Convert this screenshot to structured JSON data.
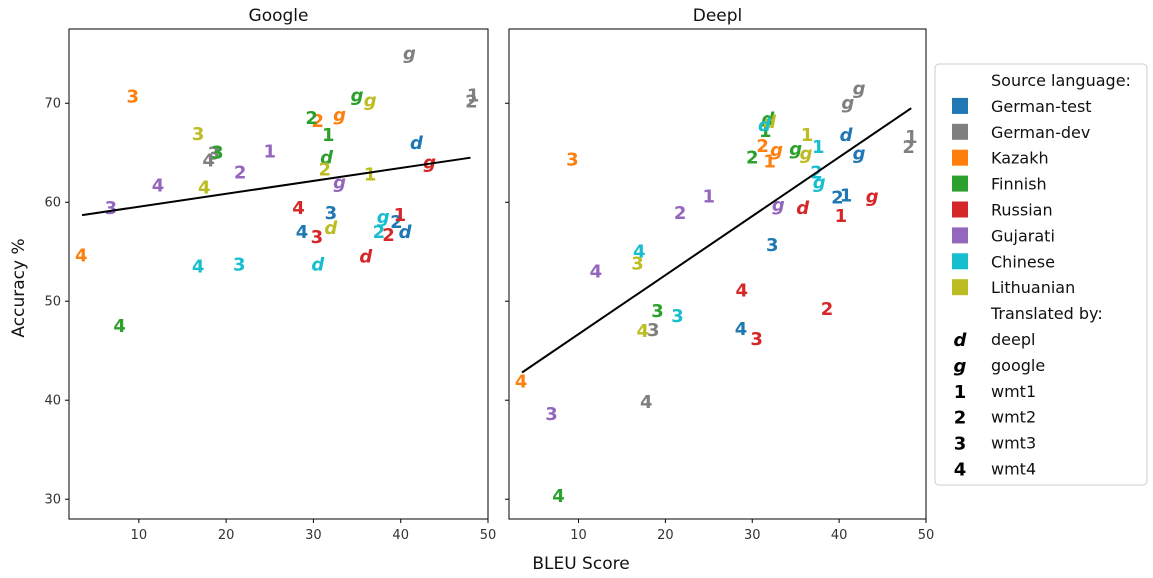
{
  "chart_data": [
    {
      "type": "scatter",
      "title": "Google",
      "xlim": [
        2,
        50
      ],
      "ylim": [
        28,
        77.5
      ],
      "xticks": [
        10,
        20,
        30,
        40,
        50
      ],
      "yticks": [
        30,
        40,
        50,
        60,
        70
      ],
      "xlabel": "BLEU Score",
      "ylabel": "Accuracy %",
      "trendline": [
        [
          3.5,
          58.7
        ],
        [
          48,
          64.5
        ]
      ],
      "points": [
        {
          "x": 41,
          "y": 75,
          "lang": "German-dev",
          "label": "g"
        },
        {
          "x": 48.3,
          "y": 70.8,
          "lang": "German-dev",
          "label": "1"
        },
        {
          "x": 48.1,
          "y": 70.2,
          "lang": "German-dev",
          "label": "2"
        },
        {
          "x": 18.6,
          "y": 64.9,
          "lang": "German-dev",
          "label": "3"
        },
        {
          "x": 18,
          "y": 64.2,
          "lang": "German-dev",
          "label": "4"
        },
        {
          "x": 9.3,
          "y": 70.7,
          "lang": "Kazakh",
          "label": "3"
        },
        {
          "x": 30.5,
          "y": 68.2,
          "lang": "Kazakh",
          "label": "2"
        },
        {
          "x": 33,
          "y": 68.8,
          "lang": "Kazakh",
          "label": "g"
        },
        {
          "x": 3.4,
          "y": 54.6,
          "lang": "Kazakh",
          "label": "4"
        },
        {
          "x": 35,
          "y": 70.8,
          "lang": "Finnish",
          "label": "g"
        },
        {
          "x": 29.8,
          "y": 68.5,
          "lang": "Finnish",
          "label": "2"
        },
        {
          "x": 31.7,
          "y": 66.8,
          "lang": "Finnish",
          "label": "1"
        },
        {
          "x": 31.5,
          "y": 64.5,
          "lang": "Finnish",
          "label": "d"
        },
        {
          "x": 19,
          "y": 65,
          "lang": "Finnish",
          "label": "3"
        },
        {
          "x": 7.8,
          "y": 47.5,
          "lang": "Finnish",
          "label": "4"
        },
        {
          "x": 36.5,
          "y": 70.3,
          "lang": "Lithuanian",
          "label": "g"
        },
        {
          "x": 16.8,
          "y": 66.9,
          "lang": "Lithuanian",
          "label": "3"
        },
        {
          "x": 31.3,
          "y": 63.3,
          "lang": "Lithuanian",
          "label": "2"
        },
        {
          "x": 36.5,
          "y": 62.8,
          "lang": "Lithuanian",
          "label": "1"
        },
        {
          "x": 17.5,
          "y": 61.5,
          "lang": "Lithuanian",
          "label": "4"
        },
        {
          "x": 32,
          "y": 57.4,
          "lang": "Lithuanian",
          "label": "d"
        },
        {
          "x": 41.8,
          "y": 66,
          "lang": "German-test",
          "label": "d"
        },
        {
          "x": 32,
          "y": 58.9,
          "lang": "German-test",
          "label": "3"
        },
        {
          "x": 28.7,
          "y": 57,
          "lang": "German-test",
          "label": "4"
        },
        {
          "x": 39.5,
          "y": 58,
          "lang": "German-test",
          "label": "2"
        },
        {
          "x": 40.5,
          "y": 57,
          "lang": "German-test",
          "label": "d"
        },
        {
          "x": 43.3,
          "y": 64,
          "lang": "Russian",
          "label": "g"
        },
        {
          "x": 28.3,
          "y": 59.4,
          "lang": "Russian",
          "label": "4"
        },
        {
          "x": 30.4,
          "y": 56.5,
          "lang": "Russian",
          "label": "3"
        },
        {
          "x": 39.9,
          "y": 58.7,
          "lang": "Russian",
          "label": "1"
        },
        {
          "x": 38.6,
          "y": 56.7,
          "lang": "Russian",
          "label": "2"
        },
        {
          "x": 36,
          "y": 54.5,
          "lang": "Russian",
          "label": "d"
        },
        {
          "x": 25,
          "y": 65.1,
          "lang": "Gujarati",
          "label": "1"
        },
        {
          "x": 21.6,
          "y": 63,
          "lang": "Gujarati",
          "label": "2"
        },
        {
          "x": 12.2,
          "y": 61.7,
          "lang": "Gujarati",
          "label": "4"
        },
        {
          "x": 6.8,
          "y": 59.4,
          "lang": "Gujarati",
          "label": "3"
        },
        {
          "x": 33,
          "y": 62,
          "lang": "Gujarati",
          "label": "g"
        },
        {
          "x": 38,
          "y": 58.5,
          "lang": "Chinese",
          "label": "g"
        },
        {
          "x": 37.5,
          "y": 57,
          "lang": "Chinese",
          "label": "2"
        },
        {
          "x": 16.8,
          "y": 53.5,
          "lang": "Chinese",
          "label": "4"
        },
        {
          "x": 21.5,
          "y": 53.7,
          "lang": "Chinese",
          "label": "3"
        },
        {
          "x": 30.5,
          "y": 53.7,
          "lang": "Chinese",
          "label": "d"
        }
      ]
    },
    {
      "type": "scatter",
      "title": "Deepl",
      "xlim": [
        2,
        50
      ],
      "ylim": [
        28,
        77.5
      ],
      "xticks": [
        10,
        20,
        30,
        40,
        50
      ],
      "yticks": [
        30,
        40,
        50,
        60,
        70
      ],
      "trendline": [
        [
          3.5,
          42.8
        ],
        [
          48.3,
          69.5
        ]
      ],
      "points": [
        {
          "x": 42.3,
          "y": 71.5,
          "lang": "German-dev",
          "label": "g"
        },
        {
          "x": 41,
          "y": 70,
          "lang": "German-dev",
          "label": "g"
        },
        {
          "x": 48.3,
          "y": 66.6,
          "lang": "German-dev",
          "label": "1"
        },
        {
          "x": 48,
          "y": 65.6,
          "lang": "German-dev",
          "label": "2"
        },
        {
          "x": 18.6,
          "y": 47.1,
          "lang": "German-dev",
          "label": "3"
        },
        {
          "x": 17.8,
          "y": 39.8,
          "lang": "German-dev",
          "label": "4"
        },
        {
          "x": 9.3,
          "y": 64.3,
          "lang": "Kazakh",
          "label": "3"
        },
        {
          "x": 31.2,
          "y": 65.7,
          "lang": "Kazakh",
          "label": "2"
        },
        {
          "x": 32,
          "y": 64.1,
          "lang": "Kazakh",
          "label": "1"
        },
        {
          "x": 32.8,
          "y": 65.3,
          "lang": "Kazakh",
          "label": "g"
        },
        {
          "x": 3.4,
          "y": 41.9,
          "lang": "Kazakh",
          "label": "4"
        },
        {
          "x": 31.8,
          "y": 68.4,
          "lang": "Finnish",
          "label": "d"
        },
        {
          "x": 31.5,
          "y": 67.2,
          "lang": "Finnish",
          "label": "1"
        },
        {
          "x": 30,
          "y": 64.5,
          "lang": "Finnish",
          "label": "2"
        },
        {
          "x": 35,
          "y": 65.4,
          "lang": "Finnish",
          "label": "g"
        },
        {
          "x": 19.1,
          "y": 49,
          "lang": "Finnish",
          "label": "3"
        },
        {
          "x": 7.7,
          "y": 30.3,
          "lang": "Finnish",
          "label": "4"
        },
        {
          "x": 32,
          "y": 68.1,
          "lang": "Lithuanian",
          "label": "d"
        },
        {
          "x": 36.3,
          "y": 66.8,
          "lang": "Lithuanian",
          "label": "1"
        },
        {
          "x": 36.2,
          "y": 64.9,
          "lang": "Lithuanian",
          "label": "g"
        },
        {
          "x": 16.8,
          "y": 53.8,
          "lang": "Lithuanian",
          "label": "3"
        },
        {
          "x": 17.4,
          "y": 47,
          "lang": "Lithuanian",
          "label": "4"
        },
        {
          "x": 40.8,
          "y": 66.8,
          "lang": "German-test",
          "label": "d"
        },
        {
          "x": 42.3,
          "y": 64.9,
          "lang": "German-test",
          "label": "g"
        },
        {
          "x": 39.8,
          "y": 60.5,
          "lang": "German-test",
          "label": "2"
        },
        {
          "x": 40.8,
          "y": 60.7,
          "lang": "German-test",
          "label": "1"
        },
        {
          "x": 32.3,
          "y": 55.7,
          "lang": "German-test",
          "label": "3"
        },
        {
          "x": 28.7,
          "y": 47.2,
          "lang": "German-test",
          "label": "4"
        },
        {
          "x": 43.8,
          "y": 60.6,
          "lang": "Russian",
          "label": "g"
        },
        {
          "x": 35.8,
          "y": 59.4,
          "lang": "Russian",
          "label": "d"
        },
        {
          "x": 40.2,
          "y": 58.6,
          "lang": "Russian",
          "label": "1"
        },
        {
          "x": 28.8,
          "y": 51.1,
          "lang": "Russian",
          "label": "4"
        },
        {
          "x": 38.6,
          "y": 49.2,
          "lang": "Russian",
          "label": "2"
        },
        {
          "x": 30.5,
          "y": 46.2,
          "lang": "Russian",
          "label": "3"
        },
        {
          "x": 25,
          "y": 60.6,
          "lang": "Gujarati",
          "label": "1"
        },
        {
          "x": 21.7,
          "y": 58.9,
          "lang": "Gujarati",
          "label": "2"
        },
        {
          "x": 33,
          "y": 59.7,
          "lang": "Gujarati",
          "label": "g"
        },
        {
          "x": 12,
          "y": 53,
          "lang": "Gujarati",
          "label": "4"
        },
        {
          "x": 6.9,
          "y": 38.6,
          "lang": "Gujarati",
          "label": "3"
        },
        {
          "x": 31.4,
          "y": 67.8,
          "lang": "Chinese",
          "label": "d"
        },
        {
          "x": 37.6,
          "y": 65.6,
          "lang": "Chinese",
          "label": "1"
        },
        {
          "x": 37.4,
          "y": 63,
          "lang": "Chinese",
          "label": "2"
        },
        {
          "x": 37.7,
          "y": 62,
          "lang": "Chinese",
          "label": "g"
        },
        {
          "x": 17,
          "y": 55,
          "lang": "Chinese",
          "label": "4"
        },
        {
          "x": 21.4,
          "y": 48.5,
          "lang": "Chinese",
          "label": "3"
        }
      ]
    }
  ],
  "legend": {
    "position": "right",
    "source_header": "Source language:",
    "languages": [
      {
        "name": "German-test",
        "color": "#1f77b4"
      },
      {
        "name": "German-dev",
        "color": "#7f7f7f"
      },
      {
        "name": "Kazakh",
        "color": "#ff7f0e"
      },
      {
        "name": "Finnish",
        "color": "#2ca02c"
      },
      {
        "name": "Russian",
        "color": "#d62728"
      },
      {
        "name": "Gujarati",
        "color": "#9467bd"
      },
      {
        "name": "Chinese",
        "color": "#17becf"
      },
      {
        "name": "Lithuanian",
        "color": "#bcbd22"
      }
    ],
    "translator_header": "Translated by:",
    "translators": [
      {
        "symbol": "d",
        "name": "deepl"
      },
      {
        "symbol": "g",
        "name": "google"
      },
      {
        "symbol": "1",
        "name": "wmt1"
      },
      {
        "symbol": "2",
        "name": "wmt2"
      },
      {
        "symbol": "3",
        "name": "wmt3"
      },
      {
        "symbol": "4",
        "name": "wmt4"
      }
    ]
  }
}
